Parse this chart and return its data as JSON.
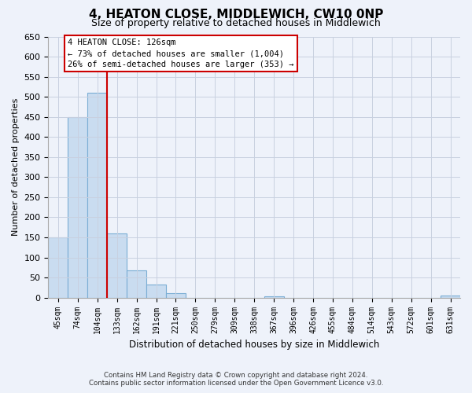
{
  "title": "4, HEATON CLOSE, MIDDLEWICH, CW10 0NP",
  "subtitle": "Size of property relative to detached houses in Middlewich",
  "xlabel": "Distribution of detached houses by size in Middlewich",
  "ylabel": "Number of detached properties",
  "bar_labels": [
    "45sqm",
    "74sqm",
    "104sqm",
    "133sqm",
    "162sqm",
    "191sqm",
    "221sqm",
    "250sqm",
    "279sqm",
    "309sqm",
    "338sqm",
    "367sqm",
    "396sqm",
    "426sqm",
    "455sqm",
    "484sqm",
    "514sqm",
    "543sqm",
    "572sqm",
    "601sqm",
    "631sqm"
  ],
  "bar_values": [
    150,
    450,
    510,
    160,
    67,
    32,
    12,
    0,
    0,
    0,
    0,
    3,
    0,
    0,
    0,
    0,
    0,
    0,
    0,
    0,
    5
  ],
  "bar_color": "#c9dcf0",
  "bar_edge_color": "#7aadd4",
  "vline_x_index": 2.5,
  "vline_color": "#cc0000",
  "annotation_title": "4 HEATON CLOSE: 126sqm",
  "annotation_line1": "← 73% of detached houses are smaller (1,004)",
  "annotation_line2": "26% of semi-detached houses are larger (353) →",
  "annotation_box_color": "#cc0000",
  "ylim": [
    0,
    650
  ],
  "yticks": [
    0,
    50,
    100,
    150,
    200,
    250,
    300,
    350,
    400,
    450,
    500,
    550,
    600,
    650
  ],
  "footer_line1": "Contains HM Land Registry data © Crown copyright and database right 2024.",
  "footer_line2": "Contains public sector information licensed under the Open Government Licence v3.0.",
  "bg_color": "#eef2fa",
  "plot_bg_color": "#eef2fa",
  "grid_color": "#c8d0e0"
}
